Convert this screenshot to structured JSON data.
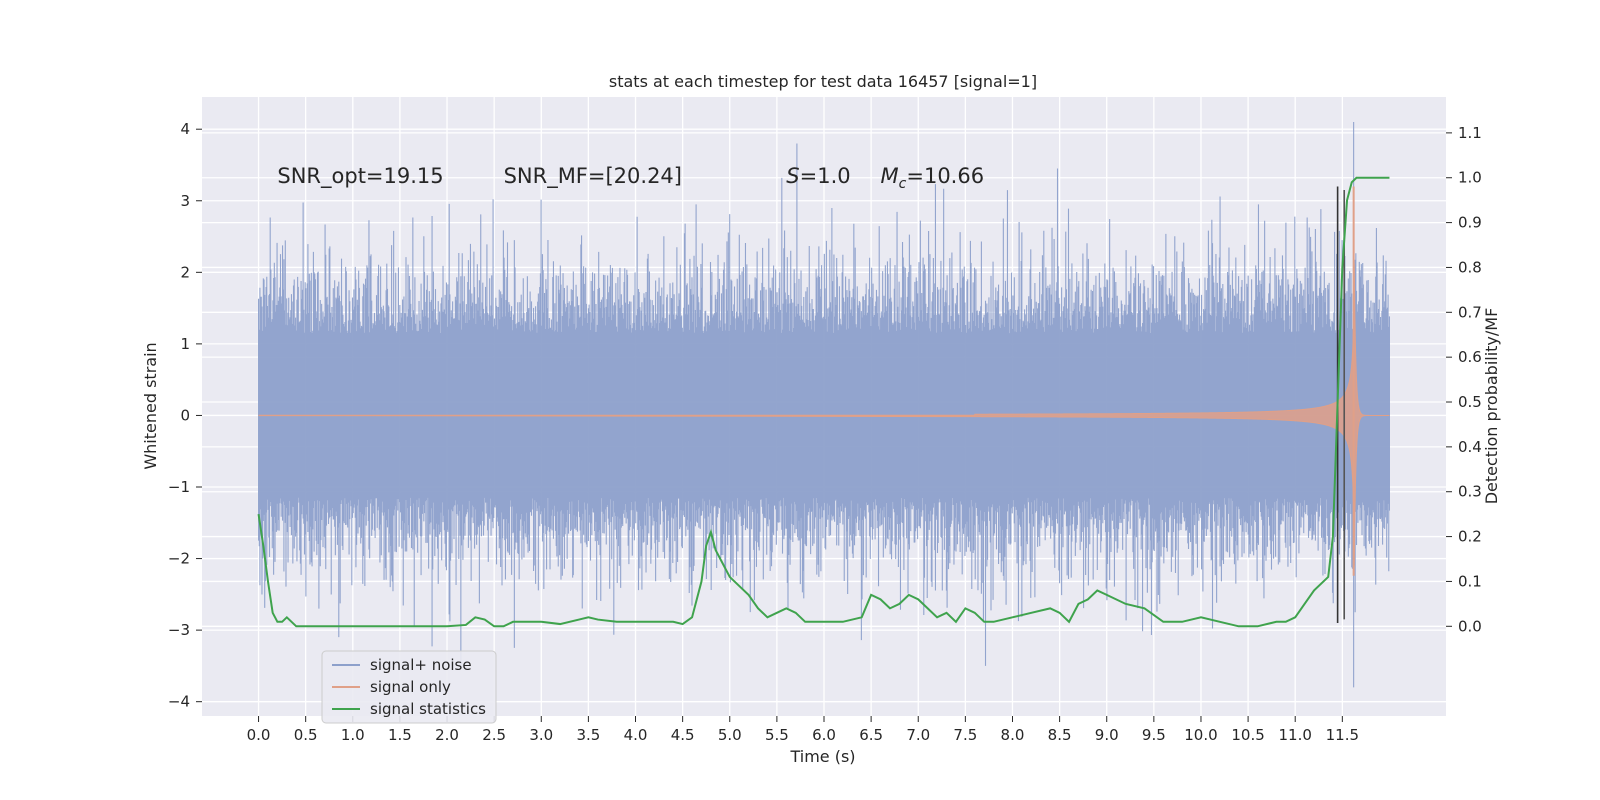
{
  "chart_data": {
    "type": "line",
    "title": "stats at each timestep for test data 16457 [signal=1]",
    "xlabel": "Time (s)",
    "ylabel": "Whitened strain",
    "ylabel_right": "Detection probability/MF",
    "xlim": [
      -0.6,
      12.6
    ],
    "ylim": [
      -4.2,
      4.45
    ],
    "ylim_right": [
      -0.2,
      1.18
    ],
    "x_ticks": [
      0.0,
      0.5,
      1.0,
      1.5,
      2.0,
      2.5,
      3.0,
      3.5,
      4.0,
      4.5,
      5.0,
      5.5,
      6.0,
      6.5,
      7.0,
      7.5,
      8.0,
      8.5,
      9.0,
      9.5,
      10.0,
      10.5,
      11.0,
      11.5
    ],
    "x_tick_labels": [
      "0.0",
      "0.5",
      "1.0",
      "1.5",
      "2.0",
      "2.5",
      "3.0",
      "3.5",
      "4.0",
      "4.5",
      "5.0",
      "5.5",
      "6.0",
      "6.5",
      "7.0",
      "7.5",
      "8.0",
      "8.5",
      "9.0",
      "9.5",
      "10.0",
      "10.5",
      "11.0",
      "11.5"
    ],
    "y_ticks": [
      -4,
      -3,
      -2,
      -1,
      0,
      1,
      2,
      3,
      4
    ],
    "y_tick_labels": [
      "−4",
      "−3",
      "−2",
      "−1",
      "0",
      "1",
      "2",
      "3",
      "4"
    ],
    "y_right_ticks": [
      0.0,
      0.1,
      0.2,
      0.3,
      0.4,
      0.5,
      0.6,
      0.7,
      0.8,
      0.9,
      1.0,
      1.1
    ],
    "y_right_tick_labels": [
      "0.0",
      "0.1",
      "0.2",
      "0.3",
      "0.4",
      "0.5",
      "0.6",
      "0.7",
      "0.8",
      "0.9",
      "1.0",
      "1.1"
    ],
    "grid": true,
    "legend_position": "lower-left",
    "background": "#eaeaf2",
    "annotations": [
      {
        "id": "snr-opt",
        "text": "SNR_opt=19.15",
        "x": 0.2,
        "y": 3.25
      },
      {
        "id": "snr-mf",
        "text": "SNR_MF=[20.24]",
        "x": 2.6,
        "y": 3.25
      },
      {
        "id": "s-val",
        "text": "S=1.0",
        "x": 5.6,
        "y": 3.25
      },
      {
        "id": "mc-val",
        "text": "M_c=10.66",
        "x": 6.6,
        "y": 3.25
      }
    ],
    "vertical_lines": [
      {
        "x": 11.45,
        "y_range": [
          -2.9,
          3.2
        ],
        "color": "#333333"
      },
      {
        "x": 11.52,
        "y_range": [
          -2.85,
          3.15
        ],
        "color": "#555555"
      }
    ],
    "series": [
      {
        "name": "signal+ noise",
        "color": "#8da0cb",
        "axis": "left",
        "kind": "noise_band",
        "x_range": [
          0.0,
          12.0
        ],
        "typical_amplitude": 1.2,
        "peak_max": 4.1,
        "peak_min": -3.8
      },
      {
        "name": "signal only",
        "color": "#e0a088",
        "axis": "left",
        "kind": "chirp",
        "x_range": [
          0.0,
          12.0
        ],
        "merger_time": 11.62,
        "peak_amplitude": 3.2
      },
      {
        "name": "signal statistics",
        "color": "#3fa34d",
        "axis": "right",
        "kind": "line",
        "x": [
          0.0,
          0.05,
          0.1,
          0.15,
          0.2,
          0.25,
          0.3,
          0.35,
          0.4,
          0.5,
          0.6,
          0.8,
          1.0,
          1.3,
          1.6,
          2.0,
          2.2,
          2.3,
          2.4,
          2.5,
          2.6,
          2.7,
          2.8,
          3.0,
          3.2,
          3.4,
          3.5,
          3.6,
          3.8,
          4.0,
          4.2,
          4.4,
          4.5,
          4.6,
          4.7,
          4.75,
          4.8,
          4.85,
          4.9,
          5.0,
          5.1,
          5.2,
          5.3,
          5.4,
          5.5,
          5.6,
          5.7,
          5.8,
          5.9,
          6.0,
          6.2,
          6.4,
          6.5,
          6.6,
          6.7,
          6.8,
          6.9,
          7.0,
          7.2,
          7.3,
          7.4,
          7.5,
          7.6,
          7.7,
          7.8,
          8.0,
          8.2,
          8.4,
          8.5,
          8.6,
          8.7,
          8.8,
          8.9,
          9.0,
          9.2,
          9.4,
          9.6,
          9.8,
          10.0,
          10.2,
          10.4,
          10.6,
          10.8,
          10.9,
          11.0,
          11.1,
          11.2,
          11.3,
          11.35,
          11.4,
          11.45,
          11.5,
          11.55,
          11.6,
          11.65,
          11.7,
          12.0
        ],
        "values": [
          0.25,
          0.18,
          0.1,
          0.03,
          0.01,
          0.01,
          0.02,
          0.01,
          0.0,
          0.0,
          0.0,
          0.0,
          0.0,
          0.0,
          0.0,
          0.0,
          0.003,
          0.02,
          0.015,
          0.0,
          0.0,
          0.01,
          0.01,
          0.01,
          0.005,
          0.015,
          0.02,
          0.015,
          0.01,
          0.01,
          0.01,
          0.01,
          0.005,
          0.02,
          0.1,
          0.18,
          0.21,
          0.17,
          0.15,
          0.11,
          0.09,
          0.07,
          0.04,
          0.02,
          0.03,
          0.04,
          0.03,
          0.01,
          0.01,
          0.01,
          0.01,
          0.02,
          0.07,
          0.06,
          0.04,
          0.05,
          0.07,
          0.06,
          0.02,
          0.03,
          0.01,
          0.04,
          0.03,
          0.01,
          0.01,
          0.02,
          0.03,
          0.04,
          0.03,
          0.01,
          0.05,
          0.06,
          0.08,
          0.07,
          0.05,
          0.04,
          0.01,
          0.01,
          0.02,
          0.01,
          0.0,
          0.0,
          0.01,
          0.01,
          0.02,
          0.05,
          0.08,
          0.1,
          0.11,
          0.2,
          0.5,
          0.8,
          0.95,
          0.99,
          1.0,
          1.0,
          1.0
        ]
      }
    ]
  }
}
